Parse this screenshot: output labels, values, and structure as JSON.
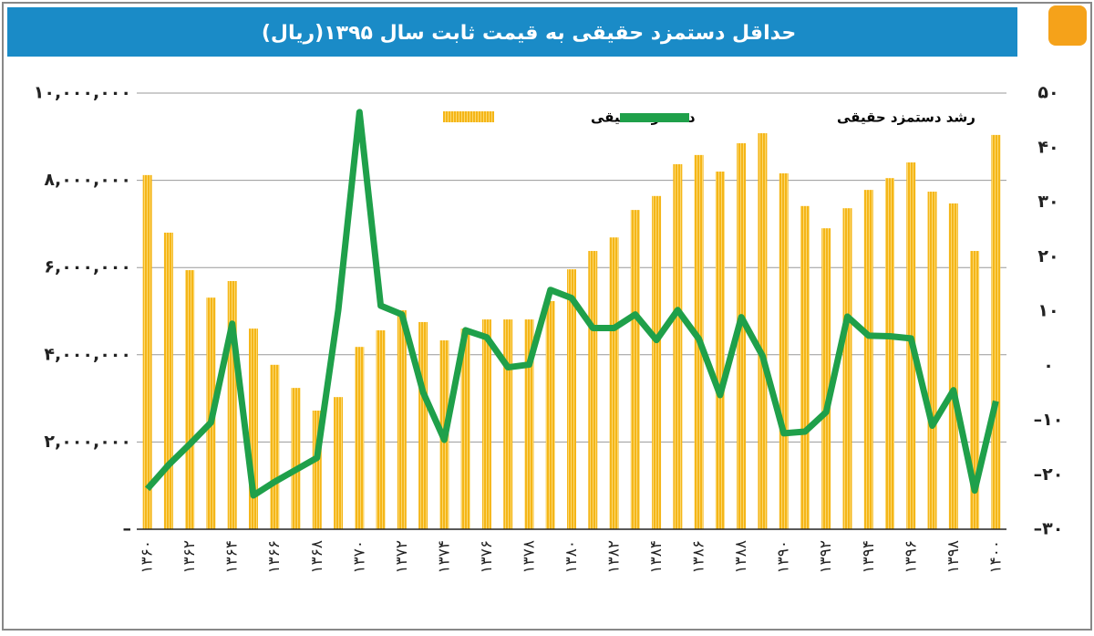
{
  "chart_data": {
    "type": "bar_line",
    "title": "حداقل دستمزد حقیقی به قیمت ثابت سال ۱۳۹۵(ریال)",
    "categories": [
      "۱۳۶۰",
      null,
      "۱۳۶۲",
      null,
      "۱۳۶۴",
      null,
      "۱۳۶۶",
      null,
      "۱۳۶۸",
      null,
      "۱۳۷۰",
      null,
      "۱۳۷۲",
      null,
      "۱۳۷۴",
      null,
      "۱۳۷۶",
      null,
      "۱۳۷۸",
      null,
      "۱۳۸۰",
      null,
      "۱۳۸۲",
      null,
      "۱۳۸۴",
      null,
      "۱۳۸۶",
      null,
      "۱۳۸۸",
      null,
      "۱۳۹۰",
      null,
      "۱۳۹۲",
      null,
      "۱۳۹۴",
      null,
      "۱۳۹۶",
      null,
      "۱۳۹۸",
      null,
      "۱۴۰۰"
    ],
    "series": [
      {
        "name": "دستمزد حقیقی",
        "type": "bar",
        "color": "#f5b618",
        "values": [
          8120000,
          6800000,
          5940000,
          5310000,
          5690000,
          4600000,
          3770000,
          3240000,
          2720000,
          3030000,
          4180000,
          4560000,
          5020000,
          4750000,
          4330000,
          4600000,
          4810000,
          4810000,
          4810000,
          5230000,
          5960000,
          6380000,
          6690000,
          7320000,
          7640000,
          8370000,
          8580000,
          8200000,
          8850000,
          9080000,
          8160000,
          7410000,
          6900000,
          7360000,
          7780000,
          8050000,
          8410000,
          7740000,
          7470000,
          6380000,
          9040000
        ]
      },
      {
        "name": "رشد دستمزد حقیقی",
        "type": "line",
        "axis": "y2",
        "color": "#1fa04a",
        "values": [
          -22.6,
          -18.2,
          -14.4,
          -10.4,
          7.7,
          -23.8,
          -21.3,
          -19.1,
          -16.9,
          10.2,
          46.5,
          11,
          9.4,
          -4.9,
          -13.6,
          6.5,
          5.2,
          -0.3,
          0.2,
          13.9,
          12.4,
          6.9,
          6.9,
          9.4,
          4.7,
          10.2,
          4.9,
          -5.4,
          8.9,
          1.8,
          -12.4,
          -12.1,
          -8.5,
          9,
          5.5,
          5.4,
          5,
          -11,
          -4.5,
          -22.9,
          -6.5
        ]
      }
    ],
    "ylim": [
      0,
      10000000
    ],
    "yticks": [
      {
        "value": 0,
        "label": "–"
      },
      {
        "value": 2000000,
        "label": "۲,۰۰۰,۰۰۰"
      },
      {
        "value": 4000000,
        "label": "۴,۰۰۰,۰۰۰"
      },
      {
        "value": 6000000,
        "label": "۶,۰۰۰,۰۰۰"
      },
      {
        "value": 8000000,
        "label": "۸,۰۰۰,۰۰۰"
      },
      {
        "value": 10000000,
        "label": "۱۰,۰۰۰,۰۰۰"
      }
    ],
    "y2lim": [
      -30,
      50
    ],
    "y2ticks": [
      {
        "value": -30,
        "label": "–۳۰"
      },
      {
        "value": -20,
        "label": "–۲۰"
      },
      {
        "value": -10,
        "label": "–۱۰"
      },
      {
        "value": 0,
        "label": "۰"
      },
      {
        "value": 10,
        "label": "۱۰"
      },
      {
        "value": 20,
        "label": "۲۰"
      },
      {
        "value": 30,
        "label": "۳۰"
      },
      {
        "value": 40,
        "label": "۴۰"
      },
      {
        "value": 50,
        "label": "۵۰"
      }
    ],
    "grid": true
  }
}
